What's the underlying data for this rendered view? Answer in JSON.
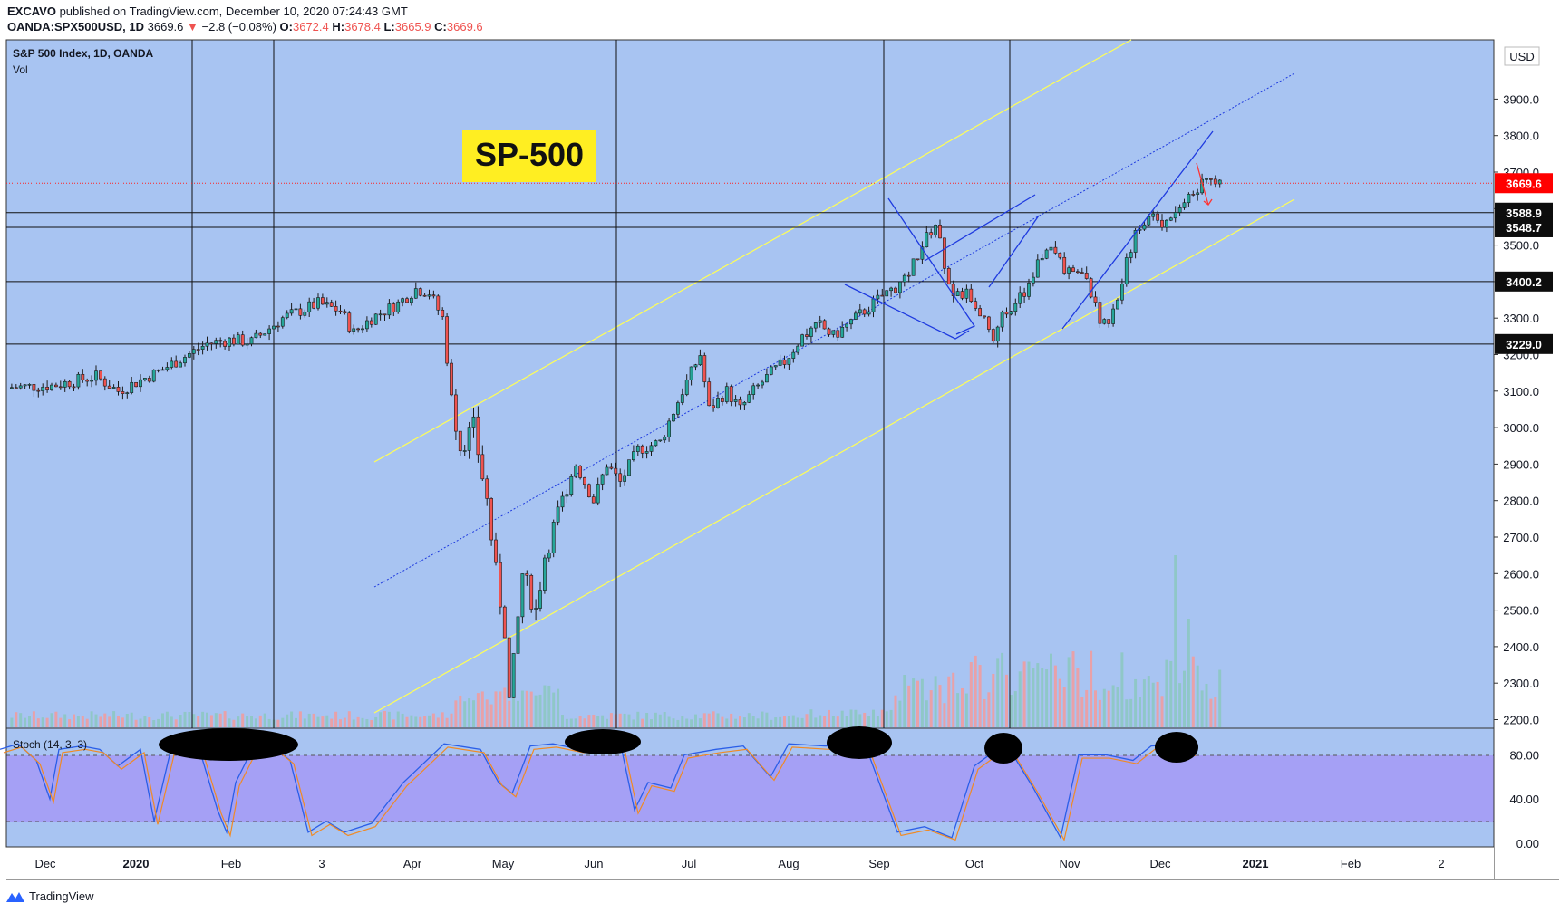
{
  "header": {
    "publisher": "EXCAVO",
    "published_line": "published on TradingView.com, December 10, 2020 07:24:43 GMT",
    "symbol": "OANDA:SPX500USD, 1D",
    "last": "3669.6",
    "change": "−2.8 (−0.08%)",
    "o_label": "O:",
    "o": "3672.4",
    "h_label": "H:",
    "h": "3678.4",
    "l_label": "L:",
    "l": "3665.9",
    "c_label": "C:",
    "c": "3669.6"
  },
  "legend": {
    "title": "S&P 500 Index, 1D, OANDA",
    "vol": "Vol",
    "stoch": "Stoch (14, 3, 3)"
  },
  "annotation": {
    "label": "SP-500"
  },
  "price_axis": {
    "currency": "USD",
    "levels": [
      "3900.0",
      "3800.0",
      "3700.0",
      "3600.0",
      "3500.0",
      "3400.0",
      "3300.0",
      "3200.0",
      "3100.0",
      "3000.0",
      "2900.0",
      "2800.0",
      "2700.0",
      "2600.0",
      "2500.0",
      "2400.0",
      "2300.0",
      "2200.0"
    ],
    "current_price": "3669.6",
    "marked_levels": [
      "3588.9",
      "3548.7",
      "3400.2",
      "3229.0"
    ]
  },
  "stoch_axis": {
    "levels": [
      "80.00",
      "40.00",
      "0.00"
    ]
  },
  "time_axis": {
    "labels": [
      "Dec",
      "2020",
      "Feb",
      "3",
      "Apr",
      "May",
      "Jun",
      "Jul",
      "Aug",
      "Sep",
      "Oct",
      "Nov",
      "Dec",
      "2021",
      "Feb",
      "2"
    ]
  },
  "footer": {
    "brand": "TradingView"
  },
  "colors": {
    "plot_bg": "#a8c4f2",
    "stoch_band": "#a5a0f5",
    "up": "#26a69a",
    "down": "#ef5350",
    "channel": "#ffff55",
    "pattern": "#1e3adf",
    "current": "#ff0000",
    "label_yellow": "#ffee22"
  },
  "chart_data": {
    "type": "candlestick",
    "title": "S&P 500 Index, 1D, OANDA",
    "ylim": [
      2100,
      3960
    ],
    "x_months": [
      "Dec 2019",
      "Jan 2020",
      "Feb 2020",
      "Mar 2020",
      "Apr 2020",
      "May 2020",
      "Jun 2020",
      "Jul 2020",
      "Aug 2020",
      "Sep 2020",
      "Oct 2020",
      "Nov 2020",
      "Dec 2020",
      "Jan 2021",
      "Feb 2021",
      "Mar 2021"
    ],
    "close_path": [
      [
        0,
        3110
      ],
      [
        10,
        3115
      ],
      [
        20,
        3140
      ],
      [
        25,
        3100
      ],
      [
        35,
        3160
      ],
      [
        45,
        3230
      ],
      [
        50,
        3240
      ],
      [
        55,
        3235
      ],
      [
        62,
        3300
      ],
      [
        70,
        3340
      ],
      [
        75,
        3320
      ],
      [
        78,
        3260
      ],
      [
        82,
        3300
      ],
      [
        88,
        3340
      ],
      [
        92,
        3380
      ],
      [
        95,
        3370
      ],
      [
        98,
        3300
      ],
      [
        100,
        3080
      ],
      [
        102,
        2950
      ],
      [
        105,
        3000
      ],
      [
        108,
        2800
      ],
      [
        110,
        2600
      ],
      [
        112,
        2450
      ],
      [
        113,
        2250
      ],
      [
        114,
        2350
      ],
      [
        116,
        2600
      ],
      [
        119,
        2500
      ],
      [
        121,
        2650
      ],
      [
        125,
        2800
      ],
      [
        128,
        2900
      ],
      [
        132,
        2800
      ],
      [
        135,
        2900
      ],
      [
        138,
        2850
      ],
      [
        142,
        2940
      ],
      [
        147,
        2960
      ],
      [
        152,
        3100
      ],
      [
        156,
        3200
      ],
      [
        158,
        3050
      ],
      [
        162,
        3100
      ],
      [
        165,
        3050
      ],
      [
        168,
        3100
      ],
      [
        172,
        3150
      ],
      [
        175,
        3180
      ],
      [
        179,
        3250
      ],
      [
        183,
        3280
      ],
      [
        186,
        3250
      ],
      [
        190,
        3290
      ],
      [
        195,
        3340
      ],
      [
        198,
        3370
      ],
      [
        202,
        3400
      ],
      [
        206,
        3500
      ],
      [
        209,
        3560
      ],
      [
        211,
        3450
      ],
      [
        213,
        3350
      ],
      [
        216,
        3370
      ],
      [
        218,
        3330
      ],
      [
        220,
        3300
      ],
      [
        222,
        3250
      ],
      [
        224,
        3300
      ],
      [
        227,
        3350
      ],
      [
        230,
        3380
      ],
      [
        232,
        3450
      ],
      [
        234,
        3500
      ],
      [
        236,
        3470
      ],
      [
        238,
        3440
      ],
      [
        242,
        3420
      ],
      [
        244,
        3370
      ],
      [
        246,
        3300
      ],
      [
        248,
        3270
      ],
      [
        250,
        3350
      ],
      [
        252,
        3470
      ],
      [
        255,
        3550
      ],
      [
        258,
        3580
      ],
      [
        260,
        3560
      ],
      [
        263,
        3600
      ],
      [
        266,
        3630
      ],
      [
        269,
        3670
      ],
      [
        271,
        3690
      ],
      [
        273,
        3670
      ]
    ],
    "horizontal_levels": [
      3588.9,
      3548.7,
      3400.2,
      3229.0
    ],
    "current_price": 3669.6,
    "stoch_levels": [
      80,
      20
    ],
    "circled_stoch_peaks": [
      "Jan 2020",
      "Jun 2020",
      "Sep 2020",
      "Oct 2020",
      "Dec 2020"
    ]
  }
}
